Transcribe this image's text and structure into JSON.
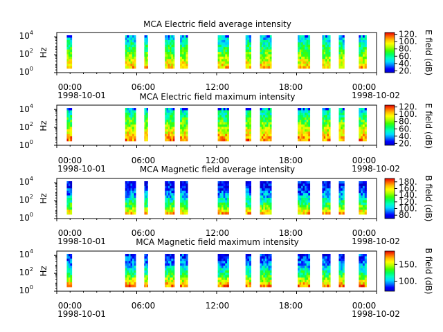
{
  "colors": {
    "colormap": [
      "#0000c8",
      "#0000ff",
      "#0078ff",
      "#00dcff",
      "#00ffc0",
      "#00ff60",
      "#40ff00",
      "#b0ff00",
      "#ffff00",
      "#ffc000",
      "#ff6000",
      "#e00000"
    ]
  },
  "chart_data": [
    {
      "type": "heatmap",
      "title": "MCA  Electric field average intensity",
      "ylabel": "Hz",
      "yscale": "log",
      "yticks": [
        {
          "base": "10",
          "exp": "0",
          "value": 1
        },
        {
          "base": "10",
          "exp": "2",
          "value": 100
        },
        {
          "base": "10",
          "exp": "4",
          "value": 10000
        }
      ],
      "xlim": [
        "1998-10-01 00:00",
        "1998-10-02 00:00"
      ],
      "xticks": [
        "00:00",
        "06:00",
        "12:00",
        "18:00",
        "00:00"
      ],
      "xdates": [
        "1998-10-01",
        "1998-10-02"
      ],
      "colorbar": {
        "label": "E field (dB)",
        "ticks": [
          "20.",
          "40.",
          "60.",
          "80.",
          "100.",
          "120."
        ],
        "range": [
          15,
          125
        ]
      },
      "intervals": [
        [
          "00:45",
          "01:08"
        ],
        [
          "05:08",
          "05:56"
        ],
        [
          "06:34",
          "06:50"
        ],
        [
          "08:07",
          "08:50"
        ],
        [
          "09:15",
          "09:50"
        ],
        [
          "12:05",
          "12:55"
        ],
        [
          "14:10",
          "14:35"
        ],
        [
          "15:15",
          "16:07"
        ],
        [
          "18:05",
          "19:00"
        ],
        [
          "19:55",
          "20:32"
        ],
        [
          "21:10",
          "21:35"
        ],
        [
          "22:40",
          "23:15"
        ]
      ]
    },
    {
      "type": "heatmap",
      "title": "MCA  Electric field maximum intensity",
      "ylabel": "Hz",
      "yscale": "log",
      "yticks": [
        {
          "base": "10",
          "exp": "0",
          "value": 1
        },
        {
          "base": "10",
          "exp": "2",
          "value": 100
        },
        {
          "base": "10",
          "exp": "4",
          "value": 10000
        }
      ],
      "xlim": [
        "1998-10-01 00:00",
        "1998-10-02 00:00"
      ],
      "xticks": [
        "00:00",
        "06:00",
        "12:00",
        "18:00",
        "00:00"
      ],
      "xdates": [
        "1998-10-01",
        "1998-10-02"
      ],
      "colorbar": {
        "label": "E field (dB)",
        "ticks": [
          "20.",
          "40.",
          "60.",
          "80.",
          "100.",
          "120."
        ],
        "range": [
          15,
          125
        ]
      },
      "intervals": [
        [
          "00:45",
          "01:08"
        ],
        [
          "05:08",
          "05:56"
        ],
        [
          "06:34",
          "06:50"
        ],
        [
          "08:07",
          "08:50"
        ],
        [
          "09:15",
          "09:50"
        ],
        [
          "12:05",
          "12:55"
        ],
        [
          "14:10",
          "14:35"
        ],
        [
          "15:15",
          "16:07"
        ],
        [
          "18:05",
          "19:00"
        ],
        [
          "19:55",
          "20:32"
        ],
        [
          "21:10",
          "21:35"
        ],
        [
          "22:40",
          "23:15"
        ]
      ]
    },
    {
      "type": "heatmap",
      "title": "MCA  Magnetic field average intensity",
      "ylabel": "Hz",
      "yscale": "log",
      "yticks": [
        {
          "base": "10",
          "exp": "0",
          "value": 1
        },
        {
          "base": "10",
          "exp": "2",
          "value": 100
        },
        {
          "base": "10",
          "exp": "4",
          "value": 10000
        }
      ],
      "xlim": [
        "1998-10-01 00:00",
        "1998-10-02 00:00"
      ],
      "xticks": [
        "00:00",
        "06:00",
        "12:00",
        "18:00",
        "00:00"
      ],
      "xdates": [
        "1998-10-01",
        "1998-10-02"
      ],
      "colorbar": {
        "label": "B field (dB)",
        "ticks": [
          "80.",
          "100.",
          "120.",
          "140.",
          "160.",
          "180."
        ],
        "range": [
          70,
          190
        ]
      },
      "intervals": [
        [
          "00:45",
          "01:08"
        ],
        [
          "05:08",
          "05:56"
        ],
        [
          "06:34",
          "06:50"
        ],
        [
          "08:07",
          "08:50"
        ],
        [
          "09:15",
          "09:50"
        ],
        [
          "12:05",
          "12:55"
        ],
        [
          "14:10",
          "14:35"
        ],
        [
          "15:15",
          "16:07"
        ],
        [
          "18:05",
          "19:00"
        ],
        [
          "19:55",
          "20:32"
        ],
        [
          "21:10",
          "21:35"
        ],
        [
          "22:40",
          "23:15"
        ]
      ]
    },
    {
      "type": "heatmap",
      "title": "MCA  Magnetic field maximum intensity",
      "ylabel": "Hz",
      "yscale": "log",
      "yticks": [
        {
          "base": "10",
          "exp": "0",
          "value": 1
        },
        {
          "base": "10",
          "exp": "2",
          "value": 100
        },
        {
          "base": "10",
          "exp": "4",
          "value": 10000
        }
      ],
      "xlim": [
        "1998-10-01 00:00",
        "1998-10-02 00:00"
      ],
      "xticks": [
        "00:00",
        "06:00",
        "12:00",
        "18:00",
        "00:00"
      ],
      "xdates": [
        "1998-10-01",
        "1998-10-02"
      ],
      "colorbar": {
        "label": "B field (dB)",
        "ticks": [
          "100.",
          "150."
        ],
        "tickValues": [
          100,
          150
        ],
        "range": [
          70,
          190
        ]
      },
      "intervals": [
        [
          "00:45",
          "01:08"
        ],
        [
          "05:08",
          "05:56"
        ],
        [
          "06:34",
          "06:50"
        ],
        [
          "08:07",
          "08:50"
        ],
        [
          "09:15",
          "09:50"
        ],
        [
          "12:05",
          "12:55"
        ],
        [
          "14:10",
          "14:35"
        ],
        [
          "15:15",
          "16:07"
        ],
        [
          "18:05",
          "19:00"
        ],
        [
          "19:55",
          "20:32"
        ],
        [
          "21:10",
          "21:35"
        ],
        [
          "22:40",
          "23:15"
        ]
      ]
    }
  ]
}
